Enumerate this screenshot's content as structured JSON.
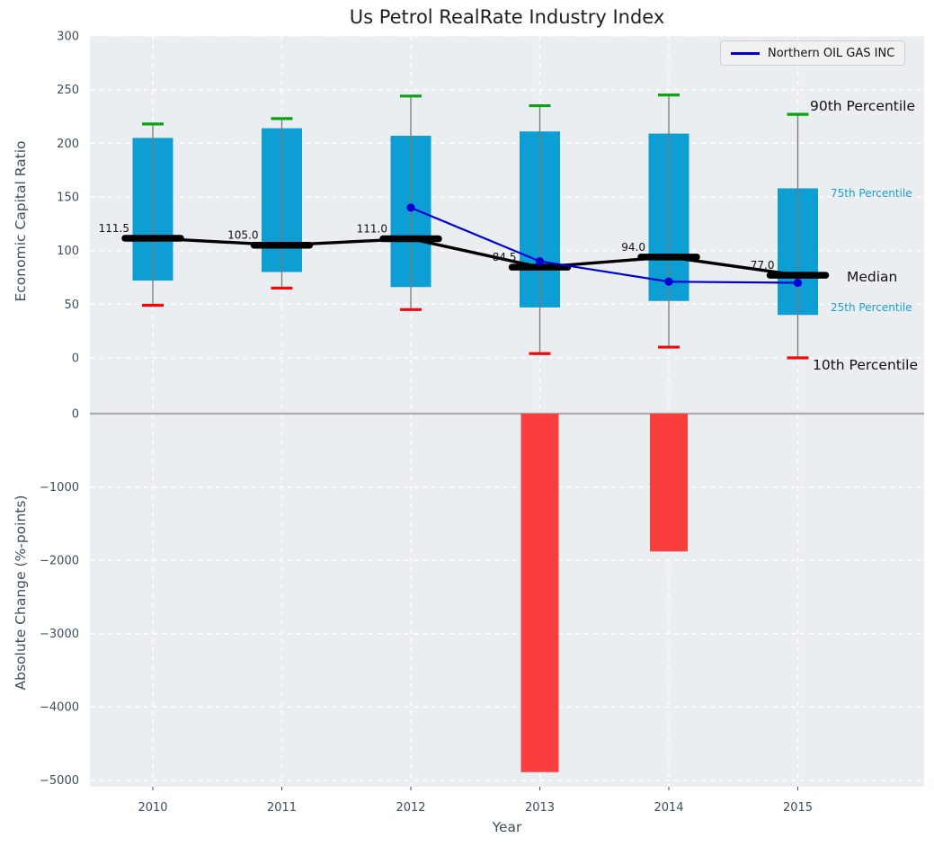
{
  "title": "Us Petrol RealRate Industry Index",
  "legend": {
    "label": "Northern OIL GAS INC"
  },
  "annotations": {
    "p90": "90th Percentile",
    "p75": "75th Percentile",
    "median": "Median",
    "p25": "25th Percentile",
    "p10": "10th Percentile"
  },
  "colors": {
    "box": "#0d9ed3",
    "whisker": "#7a7a7a",
    "cap_90": "#0ba313",
    "cap_10": "#f70808",
    "median": "#000000",
    "company": "#0000d6",
    "bar": "#fa3e3e",
    "axes_bg": "#eaeef1",
    "grid": "#ffffff",
    "tick": "#3f4d5f",
    "annotation_percentile": "#1a9fd0",
    "annotation_black": "#111111",
    "zero_line": "#ababab",
    "legend_bg": "#f1f1f3",
    "legend_border": "#cfcfd4"
  },
  "chart_data": [
    {
      "type": "box",
      "title": "Us Petrol RealRate Industry Index",
      "ylabel": "Economic Capital Ratio",
      "ylim": [
        -37.7,
        300
      ],
      "yticks": [
        300,
        250,
        200,
        150,
        100,
        50,
        0
      ],
      "categories": [
        2010,
        2011,
        2012,
        2013,
        2014,
        2015
      ],
      "grid": true,
      "legend_position": "upper right",
      "boxes": [
        {
          "year": 2010,
          "p10": 49,
          "p25": 72,
          "median": 111.5,
          "p75": 205,
          "p90": 218
        },
        {
          "year": 2011,
          "p10": 65,
          "p25": 80,
          "median": 105.0,
          "p75": 214,
          "p90": 223
        },
        {
          "year": 2012,
          "p10": 45,
          "p25": 66,
          "median": 111.0,
          "p75": 207,
          "p90": 244
        },
        {
          "year": 2013,
          "p10": 4,
          "p25": 47,
          "median": 84.5,
          "p75": 211,
          "p90": 235
        },
        {
          "year": 2014,
          "p10": 10,
          "p25": 53,
          "median": 94.0,
          "p75": 209,
          "p90": 245
        },
        {
          "year": 2015,
          "p10": 0,
          "p25": 40,
          "median": 77.0,
          "p75": 158,
          "p90": 227
        }
      ],
      "median_labels": [
        "111.5",
        "105.0",
        "111.0",
        "84.5",
        "94.0",
        "77.0"
      ],
      "series": [
        {
          "name": "Northern OIL GAS INC",
          "x": [
            2012,
            2013,
            2014,
            2015
          ],
          "y": [
            140,
            90,
            71,
            70
          ]
        }
      ]
    },
    {
      "type": "bar",
      "ylabel": "Absolute Change (%-points)",
      "xlabel": "Year",
      "categories": [
        2010,
        2011,
        2012,
        2013,
        2014,
        2015
      ],
      "values": [
        null,
        null,
        null,
        -4890,
        -1880,
        null
      ],
      "yticks": [
        0,
        -1000,
        -2000,
        -3000,
        -4000,
        -5000
      ],
      "ylim": [
        -5090,
        209
      ],
      "grid": true
    }
  ]
}
